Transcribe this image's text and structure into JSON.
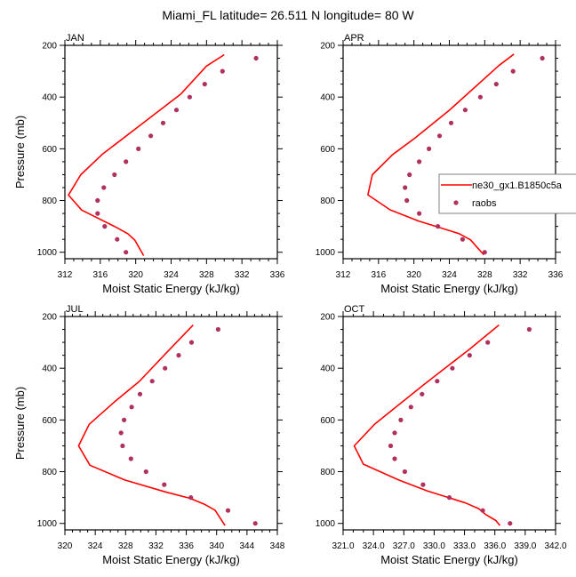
{
  "figure": {
    "title": "Miami_FL  latitude= 26.511 N longitude= 80 W"
  },
  "legend": {
    "placement": "right-middle of APR panel",
    "entries": [
      {
        "label": "ne30_gx1.B1850c5a",
        "kind": "line",
        "color": "#ff0000"
      },
      {
        "label": "raobs",
        "kind": "marker",
        "color": "#b03060"
      }
    ]
  },
  "chart_data": [
    {
      "type": "line",
      "title": "JAN",
      "xlabel": "Moist Static Energy (kJ/kg)",
      "ylabel": "Pressure (mb)",
      "xlim": [
        312,
        336
      ],
      "ylim": [
        1025,
        200
      ],
      "y_reversed": true,
      "xticks": [
        312,
        316,
        320,
        324,
        328,
        332,
        336
      ],
      "xtick_labels": [
        "312",
        "316",
        "320",
        "324",
        "328",
        "332",
        "336"
      ],
      "x_minor_step": 1,
      "yticks": [
        200,
        400,
        600,
        800,
        1000
      ],
      "ytick_labels": [
        "200",
        "400",
        "600",
        "800",
        "1000"
      ],
      "y_minor_step": 50,
      "grid": false,
      "series": [
        {
          "name": "ne30_gx1.B1850c5a",
          "style": "line",
          "color": "#ff0000",
          "x": [
            330.0,
            328.0,
            325.1,
            319.9,
            316.2,
            313.8,
            312.4,
            313.9,
            317.7,
            319.1,
            319.9,
            320.9
          ],
          "y": [
            236,
            280,
            388,
            525,
            622,
            700,
            779,
            837,
            902,
            928,
            953,
            1013
          ]
        },
        {
          "name": "raobs",
          "style": "marker",
          "color": "#b03060",
          "x": [
            333.6,
            329.8,
            327.8,
            326.1,
            324.6,
            323.1,
            321.7,
            320.3,
            318.9,
            317.6,
            316.4,
            315.7,
            315.7,
            316.5,
            317.9,
            318.9
          ],
          "y": [
            250,
            300,
            350,
            400,
            450,
            500,
            550,
            600,
            650,
            700,
            750,
            800,
            850,
            900,
            950,
            1000
          ]
        }
      ]
    },
    {
      "type": "line",
      "title": "APR",
      "xlabel": "Moist Static Energy (kJ/kg)",
      "ylabel": "",
      "xlim": [
        312,
        336
      ],
      "ylim": [
        1025,
        200
      ],
      "y_reversed": true,
      "xticks": [
        312,
        316,
        320,
        324,
        328,
        332,
        336
      ],
      "xtick_labels": [
        "312",
        "316",
        "320",
        "324",
        "328",
        "332",
        "336"
      ],
      "x_minor_step": 1,
      "yticks": [
        200,
        400,
        600,
        800,
        1000
      ],
      "ytick_labels": [
        "200",
        "400",
        "600",
        "800",
        "1000"
      ],
      "y_minor_step": 50,
      "grid": false,
      "series": [
        {
          "name": "ne30_gx1.B1850c5a",
          "style": "line",
          "color": "#ff0000",
          "x": [
            331.3,
            329.6,
            324.0,
            320.1,
            317.6,
            315.3,
            314.8,
            317.3,
            320.5,
            325.1,
            326.4,
            327.0,
            327.9
          ],
          "y": [
            234,
            278,
            451,
            559,
            622,
            700,
            778,
            836,
            879,
            928,
            952,
            976,
            1010
          ]
        },
        {
          "name": "raobs",
          "style": "marker",
          "color": "#b03060",
          "x": [
            334.5,
            331.2,
            329.3,
            327.5,
            325.8,
            324.2,
            322.9,
            321.7,
            320.6,
            319.5,
            319.0,
            319.2,
            320.6,
            322.7,
            325.5,
            328.0
          ],
          "y": [
            250,
            300,
            350,
            400,
            450,
            500,
            550,
            600,
            650,
            700,
            750,
            800,
            850,
            900,
            950,
            1000
          ]
        }
      ]
    },
    {
      "type": "line",
      "title": "JUL",
      "xlabel": "Moist Static Energy (kJ/kg)",
      "ylabel": "Pressure (mb)",
      "xlim": [
        320,
        348
      ],
      "ylim": [
        1025,
        200
      ],
      "y_reversed": true,
      "xticks": [
        320,
        324,
        328,
        332,
        336,
        340,
        344,
        348
      ],
      "xtick_labels": [
        "320",
        "324",
        "328",
        "332",
        "336",
        "340",
        "344",
        "348"
      ],
      "x_minor_step": 1,
      "yticks": [
        200,
        400,
        600,
        800,
        1000
      ],
      "ytick_labels": [
        "200",
        "400",
        "600",
        "800",
        "1000"
      ],
      "y_minor_step": 50,
      "grid": false,
      "series": [
        {
          "name": "ne30_gx1.B1850c5a",
          "style": "line",
          "color": "#ff0000",
          "x": [
            336.9,
            333.3,
            329.8,
            326.5,
            323.2,
            321.8,
            323.3,
            327.9,
            333.2,
            336.5,
            338.4,
            339.8,
            340.6,
            341.1
          ],
          "y": [
            233,
            343,
            451,
            531,
            617,
            700,
            775,
            832,
            878,
            903,
            926,
            949,
            985,
            1008
          ]
        },
        {
          "name": "raobs",
          "style": "marker",
          "color": "#b03060",
          "x": [
            340.2,
            336.7,
            335.0,
            333.2,
            331.5,
            329.9,
            328.8,
            327.8,
            327.4,
            327.6,
            328.7,
            330.7,
            333.1,
            336.6,
            341.5,
            345.1
          ],
          "y": [
            250,
            300,
            350,
            400,
            450,
            500,
            550,
            600,
            650,
            700,
            750,
            800,
            850,
            900,
            950,
            1000
          ]
        }
      ]
    },
    {
      "type": "line",
      "title": "OCT",
      "xlabel": "Moist Static Energy (kJ/kg)",
      "ylabel": "",
      "xlim": [
        321,
        342
      ],
      "ylim": [
        1025,
        200
      ],
      "y_reversed": true,
      "xticks": [
        321,
        324,
        327,
        330,
        333,
        336,
        339,
        342
      ],
      "xtick_labels": [
        "321.0",
        "324.0",
        "327.0",
        "330.0",
        "333.0",
        "336.0",
        "339.0",
        "342.0"
      ],
      "x_minor_step": 1,
      "yticks": [
        200,
        400,
        600,
        800,
        1000
      ],
      "ytick_labels": [
        "200",
        "400",
        "600",
        "800",
        "1000"
      ],
      "y_minor_step": 50,
      "grid": false,
      "series": [
        {
          "name": "ne30_gx1.B1850c5a",
          "style": "line",
          "color": "#ff0000",
          "x": [
            336.4,
            333.5,
            329.0,
            325.9,
            324.1,
            322.1,
            323.0,
            326.5,
            329.3,
            333.1,
            334.4,
            335.1,
            336.1,
            336.5
          ],
          "y": [
            233,
            326,
            463,
            560,
            617,
            700,
            771,
            832,
            874,
            921,
            943,
            966,
            989,
            1008
          ]
        },
        {
          "name": "raobs",
          "style": "marker",
          "color": "#b03060",
          "x": [
            339.4,
            335.3,
            333.5,
            331.8,
            330.3,
            328.8,
            327.7,
            326.7,
            326.1,
            325.7,
            326.1,
            327.1,
            328.9,
            331.5,
            334.8,
            337.5
          ],
          "y": [
            250,
            300,
            350,
            400,
            450,
            500,
            550,
            600,
            650,
            700,
            750,
            800,
            850,
            900,
            950,
            1000
          ]
        }
      ]
    }
  ]
}
